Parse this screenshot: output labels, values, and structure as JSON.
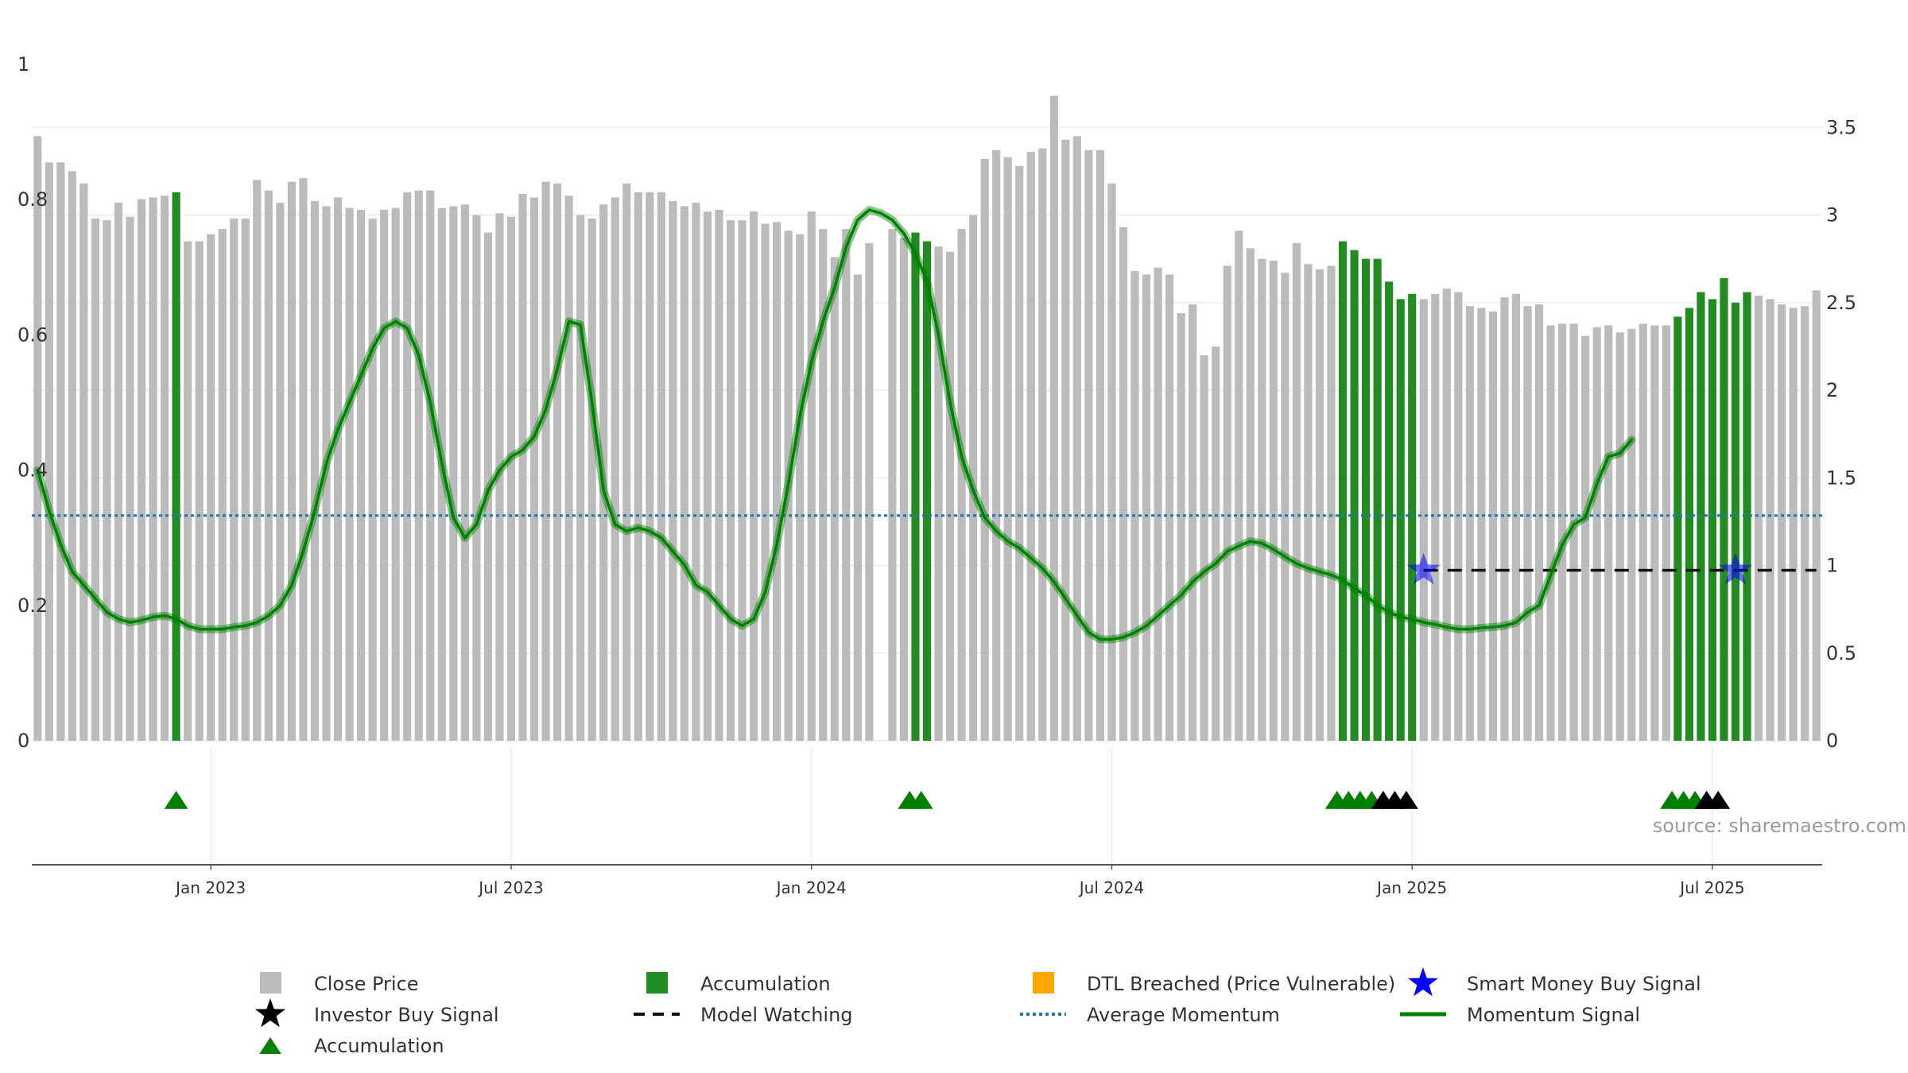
{
  "chart_data": {
    "type": "bar",
    "title": "",
    "source_label": "source: sharemaestro.com",
    "left_axis": {
      "ticks": [
        "0",
        "0.2",
        "0.4",
        "0.6",
        "0.8",
        "1"
      ],
      "range": [
        0,
        1
      ]
    },
    "right_axis": {
      "ticks": [
        "0",
        "0.5",
        "1",
        "1.5",
        "2",
        "2.5",
        "3",
        "3.5"
      ],
      "range": [
        0,
        3.85
      ]
    },
    "x_ticks": [
      {
        "label": "Jan 2023",
        "week": 20
      },
      {
        "label": "Jul 2023",
        "week": 46
      },
      {
        "label": "Jan 2024",
        "week": 72
      },
      {
        "label": "Jul 2024",
        "week": 98
      },
      {
        "label": "Jan 2025",
        "week": 124
      },
      {
        "label": "Jul 2025",
        "week": 150
      }
    ],
    "week_range": [
      4.5,
      159.5
    ],
    "close_price": [
      3.45,
      3.3,
      3.3,
      3.25,
      3.18,
      2.98,
      2.97,
      3.07,
      2.99,
      3.09,
      3.1,
      3.11,
      3.13,
      2.85,
      2.85,
      2.89,
      2.92,
      2.98,
      2.98,
      3.2,
      3.14,
      3.07,
      3.19,
      3.21,
      3.08,
      3.05,
      3.1,
      3.04,
      3.03,
      2.98,
      3.03,
      3.04,
      3.13,
      3.14,
      3.14,
      3.04,
      3.05,
      3.06,
      3.0,
      2.9,
      3.01,
      2.99,
      3.12,
      3.1,
      3.19,
      3.18,
      3.11,
      3.0,
      2.98,
      3.06,
      3.1,
      3.18,
      3.13,
      3.13,
      3.13,
      3.08,
      3.05,
      3.07,
      3.02,
      3.03,
      2.97,
      2.97,
      3.02,
      2.95,
      2.96,
      2.91,
      2.89,
      3.02,
      2.92,
      2.76,
      2.92,
      2.66,
      2.84,
      0,
      2.92,
      2.87,
      2.9,
      2.85,
      2.82,
      2.79,
      2.92,
      3.0,
      3.32,
      3.37,
      3.33,
      3.28,
      3.36,
      3.38,
      3.68,
      3.43,
      3.45,
      3.37,
      3.37,
      3.18,
      2.93,
      2.68,
      2.66,
      2.7,
      2.66,
      2.44,
      2.49,
      2.2,
      2.25,
      2.71,
      2.91,
      2.81,
      2.75,
      2.74,
      2.67,
      2.84,
      2.72,
      2.69,
      2.71,
      2.85,
      2.8,
      2.75,
      2.75,
      2.62,
      2.52,
      2.55,
      2.52,
      2.55,
      2.58,
      2.56,
      2.48,
      2.47,
      2.45,
      2.53,
      2.55,
      2.48,
      2.49,
      2.37,
      2.38,
      2.38,
      2.31,
      2.36,
      2.37,
      2.33,
      2.35,
      2.38,
      2.37,
      2.37,
      2.42,
      2.47,
      2.56,
      2.52,
      2.64,
      2.5,
      2.56,
      2.54,
      2.52,
      2.49,
      2.47,
      2.48,
      2.57
    ],
    "accumulation_weeks": [
      17,
      81,
      82,
      118,
      119,
      120,
      121,
      122,
      123,
      124,
      147,
      148,
      149,
      150,
      151,
      152,
      153
    ],
    "investor_buy_weeks": [
      121.5,
      122.5,
      123.5,
      149.5,
      150.5
    ],
    "accumulation_marker_weeks": [
      17,
      80.5,
      81.5,
      117.5,
      118.5,
      119.5,
      120.5,
      146.5,
      147.5,
      148.5,
      149.5
    ],
    "smart_money_buy_weeks": [
      125,
      152
    ],
    "model_watching": {
      "from_week": 125,
      "to_week": 159,
      "value": 0.252
    },
    "average_momentum": 0.333,
    "momentum_signal": [
      0.4,
      0.34,
      0.29,
      0.25,
      0.23,
      0.21,
      0.19,
      0.18,
      0.175,
      0.178,
      0.183,
      0.185,
      0.18,
      0.17,
      0.165,
      0.165,
      0.165,
      0.168,
      0.17,
      0.175,
      0.185,
      0.2,
      0.23,
      0.28,
      0.34,
      0.41,
      0.46,
      0.5,
      0.54,
      0.58,
      0.61,
      0.62,
      0.61,
      0.57,
      0.5,
      0.41,
      0.33,
      0.3,
      0.32,
      0.37,
      0.4,
      0.42,
      0.43,
      0.45,
      0.49,
      0.55,
      0.62,
      0.615,
      0.5,
      0.37,
      0.32,
      0.31,
      0.315,
      0.31,
      0.3,
      0.28,
      0.26,
      0.23,
      0.22,
      0.2,
      0.18,
      0.17,
      0.18,
      0.22,
      0.29,
      0.38,
      0.48,
      0.56,
      0.62,
      0.67,
      0.73,
      0.77,
      0.785,
      0.78,
      0.77,
      0.75,
      0.72,
      0.68,
      0.6,
      0.5,
      0.42,
      0.37,
      0.33,
      0.31,
      0.295,
      0.285,
      0.27,
      0.255,
      0.235,
      0.21,
      0.185,
      0.16,
      0.15,
      0.15,
      0.153,
      0.16,
      0.17,
      0.185,
      0.2,
      0.215,
      0.235,
      0.25,
      0.262,
      0.28,
      0.288,
      0.295,
      0.292,
      0.283,
      0.272,
      0.262,
      0.255,
      0.25,
      0.245,
      0.238,
      0.225,
      0.215,
      0.2,
      0.19,
      0.183,
      0.18,
      0.175,
      0.172,
      0.168,
      0.165,
      0.165,
      0.167,
      0.168,
      0.17,
      0.175,
      0.19,
      0.2,
      0.245,
      0.29,
      0.32,
      0.33,
      0.38,
      0.42,
      0.425,
      0.445
    ]
  },
  "legend": [
    {
      "key": "close_price",
      "label": "Close Price",
      "color": "#bbbbbb"
    },
    {
      "key": "accumulation_bar",
      "label": "Accumulation",
      "color": "#228b22"
    },
    {
      "key": "dtl_breached",
      "label": "DTL Breached (Price Vulnerable)",
      "color": "#ffa500"
    },
    {
      "key": "smart_money",
      "label": "Smart Money Buy Signal",
      "color": "#0000ff"
    },
    {
      "key": "investor_buy",
      "label": "Investor Buy Signal",
      "color": "#000000"
    },
    {
      "key": "model_watching",
      "label": "Model Watching",
      "color": "#111111"
    },
    {
      "key": "average_momentum",
      "label": "Average Momentum",
      "color": "#1f77b4"
    },
    {
      "key": "momentum_signal",
      "label": "Momentum Signal",
      "color": "#008000"
    },
    {
      "key": "accumulation_marker",
      "label": "Accumulation",
      "color": "#008000"
    }
  ]
}
